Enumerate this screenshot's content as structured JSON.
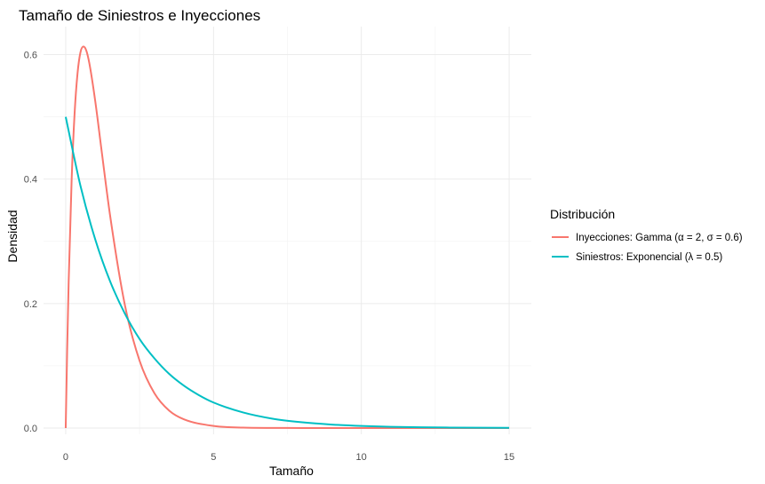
{
  "chart_data": {
    "type": "line",
    "title": "Tamaño de Siniestros e Inyecciones",
    "xlabel": "Tamaño",
    "ylabel": "Densidad",
    "xlim": [
      -0.75,
      15.75
    ],
    "ylim": [
      -0.01,
      0.645
    ],
    "x_ticks": [
      0,
      5,
      10,
      15
    ],
    "x_tick_labels": [
      "0",
      "5",
      "10",
      "15"
    ],
    "y_ticks": [
      0.0,
      0.2,
      0.4,
      0.6
    ],
    "y_tick_labels": [
      "0.0",
      "0.2",
      "0.4",
      "0.6"
    ],
    "grid": true,
    "legend_position": "right",
    "legend_title": "Distribución",
    "series": [
      {
        "name": "Inyecciones: Gamma (α = 2, σ = 0.6)",
        "color": "#F8766D",
        "x": [
          0,
          0.05,
          0.1,
          0.2,
          0.3,
          0.4,
          0.5,
          0.6,
          0.7,
          0.8,
          1.0,
          1.2,
          1.5,
          2.0,
          2.5,
          3.0,
          3.5,
          4.0,
          5.0,
          6.0,
          7.0,
          8.0,
          10.0,
          12.0,
          15.0
        ],
        "y": [
          0,
          0.127,
          0.235,
          0.398,
          0.505,
          0.57,
          0.604,
          0.613,
          0.606,
          0.586,
          0.525,
          0.451,
          0.342,
          0.198,
          0.108,
          0.056,
          0.028,
          0.014,
          0.0034,
          0.0007,
          0.0002,
          3e-05,
          0.0,
          0.0,
          0.0
        ]
      },
      {
        "name": "Siniestros: Exponencial (λ = 0.5)",
        "color": "#00BFC4",
        "x": [
          0,
          0.5,
          1,
          1.5,
          2,
          2.5,
          3,
          3.5,
          4,
          4.5,
          5,
          6,
          7,
          8,
          9,
          10,
          11,
          12,
          13,
          14,
          15
        ],
        "y": [
          0.5,
          0.389,
          0.303,
          0.236,
          0.184,
          0.143,
          0.112,
          0.087,
          0.068,
          0.053,
          0.041,
          0.025,
          0.015,
          0.0092,
          0.0056,
          0.0034,
          0.002,
          0.0012,
          0.00075,
          0.00046,
          0.00028
        ]
      }
    ]
  }
}
